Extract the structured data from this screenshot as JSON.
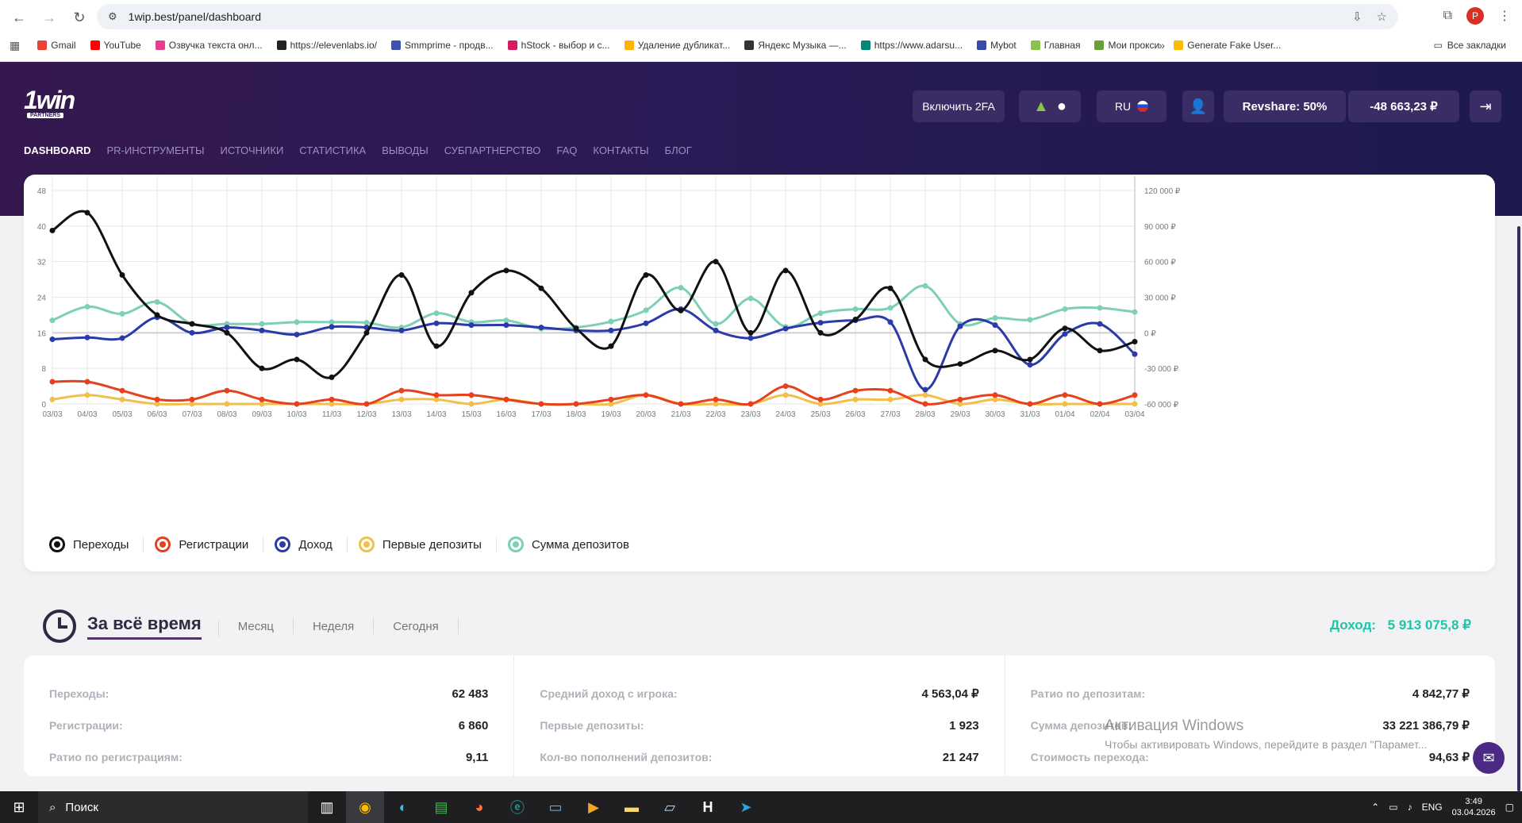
{
  "browser": {
    "url": "1wip.best/panel/dashboard",
    "profile_initial": "P",
    "bookmarks": [
      {
        "label": "Gmail",
        "color": "#ea4335"
      },
      {
        "label": "YouTube",
        "color": "#ff0000"
      },
      {
        "label": "Озвучка текста онл...",
        "color": "#e83e8c"
      },
      {
        "label": "https://elevenlabs.io/",
        "color": "#222222"
      },
      {
        "label": "Smmprime - продв...",
        "color": "#3f51b5"
      },
      {
        "label": "hStock - выбор и с...",
        "color": "#d81b60"
      },
      {
        "label": "Удаление дубликат...",
        "color": "#ffb300"
      },
      {
        "label": "Яндекс Музыка —...",
        "color": "#333333"
      },
      {
        "label": "https://www.adarsu...",
        "color": "#00897b"
      },
      {
        "label": "Mybot",
        "color": "#3949ab"
      },
      {
        "label": "Главная",
        "color": "#8bc34a"
      },
      {
        "label": "Мои прокси",
        "color": "#689f38"
      },
      {
        "label": "Generate Fake User...",
        "color": "#fbbc04"
      }
    ],
    "all_bookmarks": "Все закладки"
  },
  "header": {
    "logo": "1win",
    "logo_sub": "PARTNERS",
    "btn_2fa": "Включить 2FA",
    "lang": "RU",
    "revshare": "Revshare: 50%",
    "balance": "-48 663,23 ₽"
  },
  "nav": [
    "DASHBOARD",
    "PR-ИНСТРУМЕНТЫ",
    "ИСТОЧНИКИ",
    "СТАТИСТИКА",
    "ВЫВОДЫ",
    "СУБПАРТНЕРСТВО",
    "FAQ",
    "КОНТАКТЫ",
    "БЛОГ"
  ],
  "chart_data": {
    "type": "line",
    "categories": [
      "03/03",
      "04/03",
      "05/03",
      "06/03",
      "07/03",
      "08/03",
      "09/03",
      "10/03",
      "11/03",
      "12/03",
      "13/03",
      "14/03",
      "15/03",
      "16/03",
      "17/03",
      "18/03",
      "19/03",
      "20/03",
      "21/03",
      "22/03",
      "23/03",
      "24/03",
      "25/03",
      "26/03",
      "27/03",
      "28/03",
      "29/03",
      "30/03",
      "31/03",
      "01/04",
      "02/04",
      "03/04"
    ],
    "y_left": {
      "min": 0,
      "max": 48,
      "ticks": [
        "0",
        "8",
        "16",
        "24",
        "32",
        "40",
        "48"
      ]
    },
    "y_right": {
      "min": -60000,
      "max": 120000,
      "ticks": [
        "-60 000 ₽",
        "-30 000 ₽",
        "0 ₽",
        "30 000 ₽",
        "60 000 ₽",
        "90 000 ₽",
        "120 000 ₽"
      ]
    },
    "grid": true,
    "legend_position": "bottom-left",
    "series": [
      {
        "name": "Переходы",
        "color": "#111111",
        "axis": "left",
        "values": [
          39,
          43,
          29,
          20,
          18,
          16,
          8,
          10,
          6,
          16,
          29,
          13,
          25,
          30,
          26,
          17,
          13,
          29,
          21,
          32,
          16,
          30,
          16,
          19,
          26,
          10,
          9,
          12,
          10,
          17,
          12,
          14
        ]
      },
      {
        "name": "Регистрации",
        "color": "#e8401c",
        "axis": "left",
        "values": [
          5,
          5,
          3,
          1,
          1,
          3,
          1,
          0,
          1,
          0,
          3,
          2,
          2,
          1,
          0,
          0,
          1,
          2,
          0,
          1,
          0,
          4,
          1,
          3,
          3,
          0,
          1,
          2,
          0,
          2,
          0,
          2
        ]
      },
      {
        "name": "Доход",
        "color": "#2b3aa8",
        "axis": "right",
        "values": [
          -5500,
          -4000,
          -4500,
          13000,
          0,
          4500,
          2000,
          -1500,
          5000,
          4500,
          2000,
          8000,
          6500,
          6500,
          4500,
          2000,
          2000,
          8000,
          20000,
          2000,
          -4500,
          3500,
          8500,
          10500,
          9000,
          -48000,
          5500,
          6500,
          -27000,
          -1000,
          7500,
          -18000
        ]
      },
      {
        "name": "Первые депозиты",
        "color": "#f2c04a",
        "axis": "left",
        "values": [
          1,
          2,
          1,
          0,
          0,
          0,
          0,
          0,
          0,
          0,
          1,
          1,
          0,
          1,
          0,
          0,
          0,
          2,
          0,
          0,
          0,
          2,
          0,
          1,
          1,
          2,
          0,
          1,
          0,
          0,
          0,
          0
        ]
      },
      {
        "name": "Сумма депозитов",
        "color": "#7dcfb6",
        "axis": "right",
        "values": [
          10500,
          22000,
          16000,
          26000,
          7500,
          7500,
          7500,
          9000,
          9000,
          8500,
          4500,
          16500,
          9000,
          10500,
          3500,
          4500,
          9500,
          19000,
          38000,
          7500,
          29000,
          5000,
          16500,
          20000,
          21000,
          39500,
          7500,
          12500,
          11000,
          20000,
          21000,
          17500
        ]
      }
    ]
  },
  "period": {
    "tabs": [
      "За всё время",
      "Месяц",
      "Неделя",
      "Сегодня"
    ],
    "income_label": "Доход:",
    "income_value": "5 913 075,8 ₽"
  },
  "stats": [
    [
      {
        "label": "Переходы:",
        "value": "62 483"
      },
      {
        "label": "Регистрации:",
        "value": "6 860"
      },
      {
        "label": "Ратио по регистрациям:",
        "value": "9,11"
      }
    ],
    [
      {
        "label": "Средний доход с игрока:",
        "value": "4 563,04 ₽"
      },
      {
        "label": "Первые депозиты:",
        "value": "1 923"
      },
      {
        "label": "Кол-во пополнений депозитов:",
        "value": "21 247"
      }
    ],
    [
      {
        "label": "Ратио по депозитам:",
        "value": "4 842,77 ₽"
      },
      {
        "label": "Сумма депозитов:",
        "value": "33 221 386,79 ₽"
      },
      {
        "label": "Стоимость перехода:",
        "value": "94,63 ₽"
      }
    ]
  ],
  "watermark": {
    "line1": "Активация Windows",
    "line2": "Чтобы активировать Windows, перейдите в раздел \"Парамет..."
  },
  "taskbar": {
    "search": "Поиск",
    "lang": "ENG",
    "time": "3:49",
    "date": "03.04.2026"
  }
}
